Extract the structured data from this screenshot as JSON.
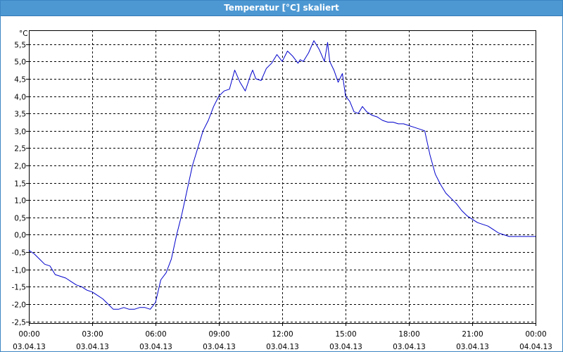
{
  "window": {
    "title": "Temperatur [°C] skaliert"
  },
  "colors": {
    "titlebar": "#4d98d3",
    "series": "#0000cc",
    "grid": "#000000"
  },
  "chart_data": {
    "type": "line",
    "title": "Temperatur [°C] skaliert",
    "ylabel": "°C",
    "xlabel": "",
    "grid": true,
    "grid_style": "dashed",
    "legend": "none",
    "xlim": [
      "2013-04-03 00:00",
      "2013-04-04 00:00"
    ],
    "ylim": [
      -2.55,
      5.9
    ],
    "y_ticks": [
      -2.5,
      -2.0,
      -1.5,
      -1.0,
      -0.5,
      0.0,
      0.5,
      1.0,
      1.5,
      2.0,
      2.5,
      3.0,
      3.5,
      4.0,
      4.5,
      5.0,
      5.5
    ],
    "y_tick_labels": [
      "-2,5",
      "-2,0",
      "-1,5",
      "-1,0",
      "-0,5",
      "0,0",
      "0,5",
      "1,0",
      "1,5",
      "2,0",
      "2,5",
      "3,0",
      "3,5",
      "4,0",
      "4,5",
      "5,0",
      "5,5"
    ],
    "x_ticks": [
      {
        "time": "00:00",
        "date": "03.04.13"
      },
      {
        "time": "03:00",
        "date": "03.04.13"
      },
      {
        "time": "06:00",
        "date": "03.04.13"
      },
      {
        "time": "09:00",
        "date": "03.04.13"
      },
      {
        "time": "12:00",
        "date": "03.04.13"
      },
      {
        "time": "15:00",
        "date": "03.04.13"
      },
      {
        "time": "18:00",
        "date": "03.04.13"
      },
      {
        "time": "21:00",
        "date": "03.04.13"
      },
      {
        "time": "00:00",
        "date": "04.04.13"
      }
    ],
    "series": [
      {
        "x_hours": [
          0,
          0.25,
          0.5,
          0.75,
          1,
          1.25,
          1.5,
          1.75,
          2,
          2.25,
          2.5,
          2.75,
          3,
          3.25,
          3.5,
          3.75,
          4,
          4.25,
          4.5,
          4.75,
          5,
          5.25,
          5.5,
          5.75,
          6,
          6.25,
          6.5,
          6.75,
          7,
          7.25,
          7.5,
          7.75,
          8,
          8.25,
          8.5,
          8.75,
          9,
          9.25,
          9.5,
          9.75,
          10,
          10.25,
          10.5,
          10.6,
          10.75,
          11,
          11.25,
          11.5,
          11.75,
          12,
          12.25,
          12.5,
          12.75,
          12.85,
          13,
          13.25,
          13.5,
          13.75,
          14,
          14.15,
          14.25,
          14.45,
          14.65,
          14.85,
          15,
          15.2,
          15.4,
          15.6,
          15.8,
          16,
          16.25,
          16.5,
          16.75,
          17,
          17.25,
          17.5,
          17.75,
          18,
          18.25,
          18.5,
          18.75,
          19,
          19.25,
          19.5,
          19.75,
          20,
          20.25,
          20.5,
          20.75,
          21,
          21.25,
          21.5,
          21.75,
          22,
          22.25,
          22.5,
          22.75,
          23,
          23.25,
          23.5,
          23.75,
          24
        ],
        "y": [
          -0.45,
          -0.55,
          -0.7,
          -0.85,
          -0.9,
          -1.15,
          -1.2,
          -1.25,
          -1.35,
          -1.45,
          -1.5,
          -1.6,
          -1.65,
          -1.75,
          -1.85,
          -2.0,
          -2.15,
          -2.15,
          -2.1,
          -2.15,
          -2.15,
          -2.1,
          -2.1,
          -2.15,
          -1.95,
          -1.3,
          -1.1,
          -0.7,
          0.0,
          0.6,
          1.3,
          2.0,
          2.5,
          3.0,
          3.3,
          3.7,
          4.0,
          4.15,
          4.2,
          4.75,
          4.4,
          4.15,
          4.6,
          4.75,
          4.5,
          4.45,
          4.8,
          4.95,
          5.2,
          5.0,
          5.3,
          5.15,
          4.95,
          5.05,
          5.0,
          5.25,
          5.6,
          5.35,
          5.0,
          5.55,
          5.0,
          4.75,
          4.4,
          4.65,
          4.0,
          3.85,
          3.55,
          3.5,
          3.7,
          3.55,
          3.45,
          3.4,
          3.3,
          3.25,
          3.25,
          3.2,
          3.2,
          3.15,
          3.1,
          3.05,
          3.0,
          2.3,
          1.75,
          1.45,
          1.2,
          1.05,
          0.9,
          0.7,
          0.55,
          0.45,
          0.35,
          0.3,
          0.25,
          0.15,
          0.05,
          0.0,
          -0.05,
          -0.05,
          -0.05,
          -0.05,
          -0.05,
          -0.05
        ]
      }
    ]
  }
}
